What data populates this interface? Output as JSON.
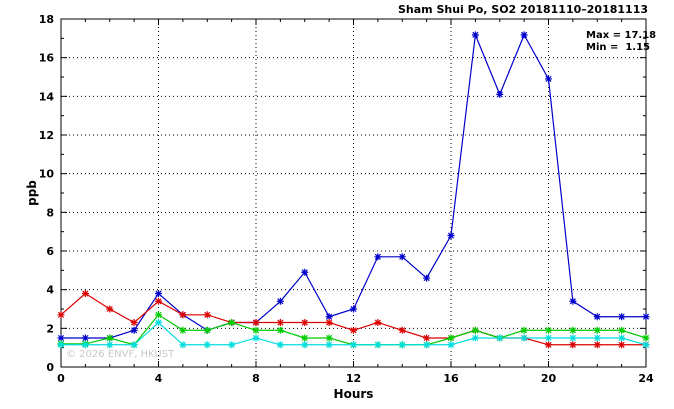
{
  "chart_data": {
    "type": "line",
    "title": "Sham Shui Po, SO2 20181110–20181113",
    "xlabel": "Hours",
    "ylabel": "ppb",
    "xlim": [
      0,
      24
    ],
    "ylim": [
      0,
      18
    ],
    "x_ticks": [
      0,
      4,
      8,
      12,
      16,
      20,
      24
    ],
    "y_ticks": [
      0,
      2,
      4,
      6,
      8,
      10,
      12,
      14,
      16,
      18
    ],
    "grid": true,
    "annotations": {
      "max_text": "Max = 17.18",
      "min_text": "Min =  1.15"
    },
    "watermark": "© 2026 ENVF, HKUST",
    "x": [
      0,
      1,
      2,
      3,
      4,
      5,
      6,
      7,
      8,
      9,
      10,
      11,
      12,
      13,
      14,
      15,
      16,
      17,
      18,
      19,
      20,
      21,
      22,
      23,
      24
    ],
    "series": [
      {
        "color": "#0000cc",
        "values": [
          1.5,
          1.5,
          1.5,
          1.9,
          3.8,
          2.7,
          1.9,
          2.3,
          2.3,
          3.4,
          4.9,
          2.6,
          3.0,
          5.7,
          5.7,
          4.6,
          6.8,
          17.18,
          14.1,
          17.18,
          14.9,
          3.4,
          2.6,
          2.6,
          2.6
        ]
      },
      {
        "color": "#dd0000",
        "values": [
          2.7,
          3.8,
          3.0,
          2.3,
          3.4,
          2.7,
          2.7,
          2.3,
          2.3,
          2.3,
          2.3,
          2.3,
          1.9,
          2.3,
          1.9,
          1.5,
          1.5,
          1.9,
          1.5,
          1.5,
          1.15,
          1.15,
          1.15,
          1.15,
          1.15
        ]
      },
      {
        "color": "#00cc00",
        "values": [
          1.2,
          1.2,
          1.5,
          1.15,
          2.7,
          1.9,
          1.9,
          2.3,
          1.9,
          1.9,
          1.5,
          1.5,
          1.15,
          1.15,
          1.15,
          1.15,
          1.5,
          1.9,
          1.5,
          1.9,
          1.9,
          1.9,
          1.9,
          1.9,
          1.5
        ]
      },
      {
        "color": "#00dddd",
        "values": [
          1.15,
          1.15,
          1.15,
          1.15,
          2.3,
          1.15,
          1.15,
          1.15,
          1.5,
          1.15,
          1.15,
          1.15,
          1.15,
          1.15,
          1.15,
          1.15,
          1.15,
          1.5,
          1.5,
          1.5,
          1.5,
          1.5,
          1.5,
          1.5,
          1.15
        ]
      }
    ]
  }
}
